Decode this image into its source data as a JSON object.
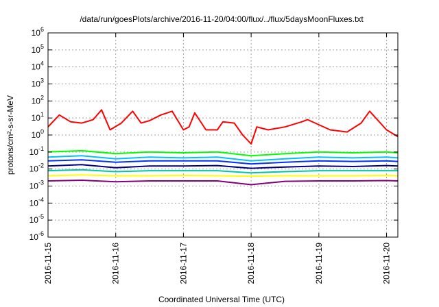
{
  "chart_data": {
    "type": "line",
    "title": "/data/run/goesPlots/archive/2016-11-20/04:00/flux/../flux/5daysMoonFluxes.txt",
    "xlabel": "Coordinated Universal Time (UTC)",
    "ylabel": "protons/cm²-s-sr-MeV",
    "y_scale": "log",
    "ylim": [
      1e-06,
      1000000.0
    ],
    "xlim": [
      "2016-11-15T00:00",
      "2016-11-20T04:00"
    ],
    "grid": true,
    "x_ticks": [
      "2016-11-15",
      "2016-11-16",
      "2016-11-17",
      "2016-11-18",
      "2016-11-19",
      "2016-11-20"
    ],
    "y_ticks": [
      {
        "base": "10",
        "exp": "-6"
      },
      {
        "base": "10",
        "exp": "-5"
      },
      {
        "base": "10",
        "exp": "-4"
      },
      {
        "base": "10",
        "exp": "-3"
      },
      {
        "base": "10",
        "exp": "-2"
      },
      {
        "base": "10",
        "exp": "-1"
      },
      {
        "base": "10",
        "exp": "0"
      },
      {
        "base": "10",
        "exp": "1"
      },
      {
        "base": "10",
        "exp": "2"
      },
      {
        "base": "10",
        "exp": "3"
      },
      {
        "base": "10",
        "exp": "4"
      },
      {
        "base": "10",
        "exp": "5"
      },
      {
        "base": "10",
        "exp": "6"
      }
    ],
    "series": [
      {
        "color": "#ff0000",
        "x": [
          "2016-11-15T00:00",
          "2016-11-15T04:00",
          "2016-11-15T08:00",
          "2016-11-15T12:00",
          "2016-11-15T16:00",
          "2016-11-15T19:00",
          "2016-11-15T22:00",
          "2016-11-16T02:00",
          "2016-11-16T06:00",
          "2016-11-16T09:00",
          "2016-11-16T12:00",
          "2016-11-16T16:00",
          "2016-11-16T20:00",
          "2016-11-17T00:00",
          "2016-11-17T02:00",
          "2016-11-17T04:00",
          "2016-11-17T08:00",
          "2016-11-17T12:00",
          "2016-11-17T14:00",
          "2016-11-17T18:00",
          "2016-11-17T21:00",
          "2016-11-18T00:00",
          "2016-11-18T02:00",
          "2016-11-18T06:00",
          "2016-11-18T12:00",
          "2016-11-18T18:00",
          "2016-11-18T20:00",
          "2016-11-19T00:00",
          "2016-11-19T04:00",
          "2016-11-19T10:00",
          "2016-11-19T15:00",
          "2016-11-19T18:00",
          "2016-11-20T00:00",
          "2016-11-20T04:00"
        ],
        "y": [
          3,
          15,
          6,
          5,
          8,
          30,
          2,
          5,
          25,
          5,
          7,
          15,
          25,
          2,
          3,
          20,
          2,
          2,
          6,
          5,
          1,
          0.3,
          3,
          2,
          3,
          6,
          8,
          4,
          2,
          1.5,
          5,
          25,
          2,
          0.8
        ]
      },
      {
        "color": "#00ff00",
        "x": [
          "2016-11-15T00:00",
          "2016-11-15T12:00",
          "2016-11-16T00:00",
          "2016-11-16T12:00",
          "2016-11-17T00:00",
          "2016-11-17T12:00",
          "2016-11-18T00:00",
          "2016-11-18T12:00",
          "2016-11-19T00:00",
          "2016-11-19T12:00",
          "2016-11-20T00:00",
          "2016-11-20T04:00"
        ],
        "y": [
          0.1,
          0.12,
          0.08,
          0.1,
          0.09,
          0.1,
          0.06,
          0.08,
          0.1,
          0.09,
          0.1,
          0.09
        ]
      },
      {
        "color": "#00c0ff",
        "x": [
          "2016-11-15T00:00",
          "2016-11-15T12:00",
          "2016-11-16T00:00",
          "2016-11-16T12:00",
          "2016-11-17T00:00",
          "2016-11-17T12:00",
          "2016-11-18T00:00",
          "2016-11-18T12:00",
          "2016-11-19T00:00",
          "2016-11-19T12:00",
          "2016-11-20T00:00",
          "2016-11-20T04:00"
        ],
        "y": [
          0.05,
          0.06,
          0.04,
          0.05,
          0.045,
          0.05,
          0.03,
          0.04,
          0.05,
          0.045,
          0.05,
          0.045
        ]
      },
      {
        "color": "#0030ff",
        "x": [
          "2016-11-15T00:00",
          "2016-11-15T12:00",
          "2016-11-16T00:00",
          "2016-11-16T12:00",
          "2016-11-17T00:00",
          "2016-11-17T12:00",
          "2016-11-18T00:00",
          "2016-11-18T12:00",
          "2016-11-19T00:00",
          "2016-11-19T12:00",
          "2016-11-20T00:00",
          "2016-11-20T04:00"
        ],
        "y": [
          0.03,
          0.035,
          0.025,
          0.03,
          0.03,
          0.03,
          0.02,
          0.025,
          0.03,
          0.028,
          0.03,
          0.028
        ]
      },
      {
        "color": "#000080",
        "x": [
          "2016-11-15T00:00",
          "2016-11-15T12:00",
          "2016-11-16T00:00",
          "2016-11-16T12:00",
          "2016-11-17T00:00",
          "2016-11-17T12:00",
          "2016-11-18T00:00",
          "2016-11-18T12:00",
          "2016-11-19T00:00",
          "2016-11-19T12:00",
          "2016-11-20T00:00",
          "2016-11-20T04:00"
        ],
        "y": [
          0.015,
          0.018,
          0.012,
          0.015,
          0.015,
          0.016,
          0.011,
          0.013,
          0.015,
          0.014,
          0.016,
          0.015
        ]
      },
      {
        "color": "#00c8a0",
        "x": [
          "2016-11-15T00:00",
          "2016-11-15T12:00",
          "2016-11-16T00:00",
          "2016-11-16T12:00",
          "2016-11-17T00:00",
          "2016-11-17T12:00",
          "2016-11-18T00:00",
          "2016-11-18T12:00",
          "2016-11-19T00:00",
          "2016-11-19T12:00",
          "2016-11-20T00:00",
          "2016-11-20T04:00"
        ],
        "y": [
          0.008,
          0.009,
          0.007,
          0.008,
          0.008,
          0.008,
          0.006,
          0.007,
          0.008,
          0.008,
          0.008,
          0.008
        ]
      },
      {
        "color": "#ffff00",
        "x": [
          "2016-11-15T00:00",
          "2016-11-15T12:00",
          "2016-11-16T00:00",
          "2016-11-16T12:00",
          "2016-11-17T00:00",
          "2016-11-17T12:00",
          "2016-11-18T00:00",
          "2016-11-18T12:00",
          "2016-11-19T00:00",
          "2016-11-19T12:00",
          "2016-11-20T00:00",
          "2016-11-20T04:00"
        ],
        "y": [
          0.004,
          0.0045,
          0.004,
          0.004,
          0.0042,
          0.004,
          0.0038,
          0.004,
          0.004,
          0.004,
          0.0042,
          0.004
        ]
      },
      {
        "color": "#800080",
        "x": [
          "2016-11-15T00:00",
          "2016-11-15T12:00",
          "2016-11-16T00:00",
          "2016-11-16T12:00",
          "2016-11-17T00:00",
          "2016-11-17T12:00",
          "2016-11-18T00:00",
          "2016-11-18T12:00",
          "2016-11-19T00:00",
          "2016-11-19T12:00",
          "2016-11-20T00:00",
          "2016-11-20T04:00"
        ],
        "y": [
          0.002,
          0.0022,
          0.0018,
          0.002,
          0.002,
          0.002,
          0.0012,
          0.0019,
          0.002,
          0.002,
          0.0021,
          0.002
        ]
      }
    ]
  }
}
